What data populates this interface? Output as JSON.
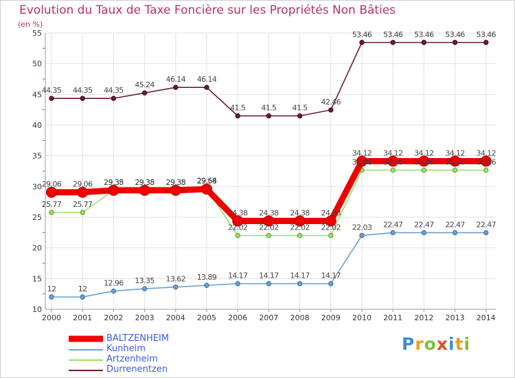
{
  "chart_data": {
    "type": "line",
    "title": "Evolution du Taux de Taxe Foncière sur les Propriétés Non Bâties",
    "ylabel": "(en %)",
    "xlabel": "",
    "ylim": [
      10,
      55
    ],
    "yticks": [
      "10",
      "15",
      "20",
      "25",
      "30",
      "35",
      "40",
      "45",
      "50",
      "55"
    ],
    "ytick_values": [
      10,
      15,
      20,
      25,
      30,
      35,
      40,
      45,
      50,
      55
    ],
    "categories": [
      "2000",
      "2001",
      "2002",
      "2003",
      "2004",
      "2005",
      "2006",
      "2007",
      "2008",
      "2009",
      "2010",
      "2011",
      "2012",
      "2013",
      "2014"
    ],
    "series": [
      {
        "name": "Durrenentzen",
        "color": "#6b1f2a",
        "values": [
          44.35,
          44.35,
          44.35,
          45.24,
          46.14,
          46.14,
          41.5,
          41.5,
          41.5,
          42.46,
          53.46,
          53.46,
          53.46,
          53.46,
          53.46
        ],
        "labels": [
          "44.35",
          "44.35",
          "44.35",
          "45.24",
          "46.14",
          "46.14",
          "41.5",
          "41.5",
          "41.5",
          "42.46",
          "53.46",
          "53.46",
          "53.46",
          "53.46",
          "53.46"
        ]
      },
      {
        "name": "Artzenheim",
        "color": "#9be06a",
        "values": [
          25.77,
          25.77,
          29.35,
          29.35,
          29.35,
          29.64,
          22.02,
          22.02,
          22.02,
          22.02,
          32.66,
          32.66,
          32.66,
          32.66,
          32.66
        ],
        "labels": [
          "25.77",
          "25.77",
          "29.35",
          "29.35",
          "29.35",
          "29.64",
          "22.02",
          "22.02",
          "22.02",
          "22.02",
          "32.66",
          "32.66",
          "32.66",
          "32.66",
          "32.66"
        ]
      },
      {
        "name": "BALTZENHEIM",
        "color": "#ee0000",
        "values": [
          29.06,
          29.06,
          29.38,
          29.38,
          29.38,
          29.58,
          24.38,
          24.38,
          24.38,
          24.38,
          34.12,
          34.12,
          34.12,
          34.12,
          34.12
        ],
        "labels": [
          "29.06",
          "29.06",
          "29.38",
          "29.38",
          "29.38",
          "29.58",
          "24.38",
          "24.38",
          "24.38",
          "24.38",
          "34.12",
          "34.12",
          "34.12",
          "34.12",
          "34.12"
        ]
      },
      {
        "name": "Kunheim",
        "color": "#6aa0d0",
        "values": [
          12,
          12,
          12.96,
          13.35,
          13.62,
          13.89,
          14.17,
          14.17,
          14.17,
          14.17,
          22.03,
          22.47,
          22.47,
          22.47,
          22.47
        ],
        "labels": [
          "12",
          "12",
          "12.96",
          "13.35",
          "13.62",
          "13.89",
          "14.17",
          "14.17",
          "14.17",
          "14.17",
          "22.03",
          "22.47",
          "22.47",
          "22.47",
          "22.47"
        ]
      }
    ],
    "legend": [
      "BALTZENHEIM",
      "Kunheim",
      "Artzenheim",
      "Durrenentzen"
    ],
    "legend_placement": "bottom-left",
    "grid": true
  },
  "logo": {
    "text": "Proxiti",
    "letters": [
      "P",
      "r",
      "o",
      "x",
      "i",
      "t",
      "i"
    ],
    "colors": [
      "#3a8fd6",
      "#e8a020",
      "#7cc242",
      "#e84a2a",
      "#3a8fd6",
      "#e8a020",
      "#7cc242"
    ]
  }
}
